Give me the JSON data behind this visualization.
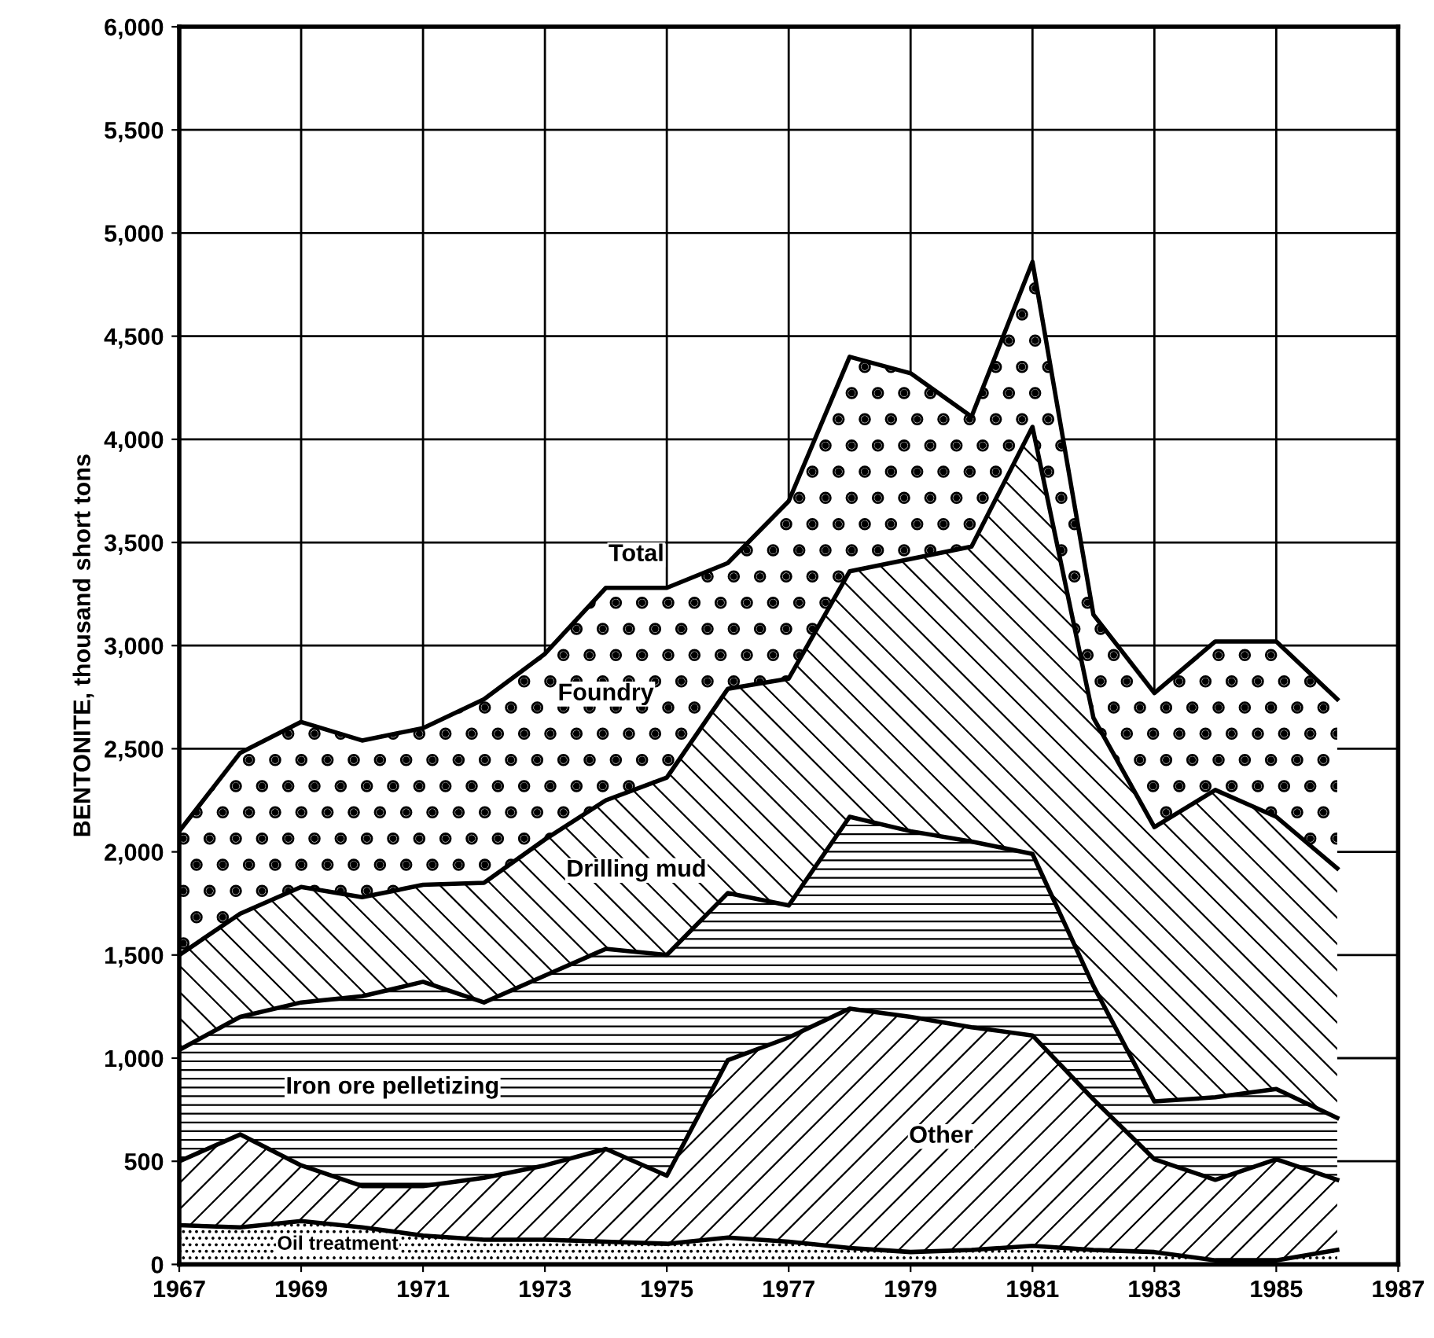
{
  "chart_data": {
    "type": "area",
    "stacked": true,
    "ylabel": "BENTONITE, thousand short tons",
    "x": [
      1967,
      1968,
      1969,
      1970,
      1971,
      1972,
      1973,
      1974,
      1975,
      1976,
      1977,
      1978,
      1979,
      1980,
      1981,
      1982,
      1983,
      1984,
      1985,
      1986
    ],
    "series": [
      {
        "name": "Oil treatment",
        "color": "#000000",
        "values": [
          190,
          180,
          210,
          180,
          140,
          120,
          120,
          110,
          100,
          130,
          110,
          80,
          60,
          70,
          90,
          70,
          60,
          20,
          20,
          70
        ]
      },
      {
        "name": "Other",
        "color": "#000000",
        "values": [
          310,
          450,
          270,
          200,
          240,
          300,
          360,
          450,
          330,
          860,
          990,
          1160,
          1140,
          1080,
          1020,
          730,
          450,
          390,
          490,
          340
        ]
      },
      {
        "name": "Iron ore pelletizing",
        "color": "#000000",
        "values": [
          540,
          570,
          790,
          920,
          990,
          850,
          920,
          970,
          1070,
          810,
          640,
          930,
          900,
          900,
          880,
          550,
          280,
          400,
          340,
          300
        ]
      },
      {
        "name": "Drilling mud",
        "color": "#000000",
        "values": [
          460,
          500,
          560,
          480,
          470,
          580,
          660,
          720,
          860,
          990,
          1100,
          1190,
          1320,
          1430,
          2070,
          1300,
          1330,
          1490,
          1320,
          1210
        ]
      },
      {
        "name": "Foundry",
        "color": "#000000",
        "values": [
          600,
          780,
          800,
          760,
          760,
          890,
          900,
          1030,
          920,
          610,
          860,
          1040,
          900,
          630,
          800,
          500,
          650,
          720,
          850,
          820
        ]
      }
    ],
    "annotations": [
      {
        "text": "Total",
        "x": 1974.5,
        "y": 3280
      }
    ],
    "xlim": [
      1967,
      1987
    ],
    "xticks": [
      1967,
      1969,
      1971,
      1973,
      1975,
      1977,
      1979,
      1981,
      1983,
      1985,
      1987
    ],
    "ylim": [
      0,
      6000
    ],
    "yticks": [
      0,
      500,
      {
        "value": 1000,
        "label": "1,000"
      },
      {
        "value": 1500,
        "label": "1,500"
      },
      {
        "value": 2000,
        "label": "2,000"
      },
      {
        "value": 2500,
        "label": "2,500"
      },
      {
        "value": 3000,
        "label": "3,000"
      },
      {
        "value": 3500,
        "label": "3,500"
      },
      {
        "value": 4000,
        "label": "4,000"
      },
      {
        "value": 4500,
        "label": "4,500"
      },
      {
        "value": 5000,
        "label": "5,000"
      },
      {
        "value": 5500,
        "label": "5,500"
      },
      {
        "value": 6000,
        "label": "6,000"
      }
    ],
    "grid": true,
    "legend": false
  }
}
